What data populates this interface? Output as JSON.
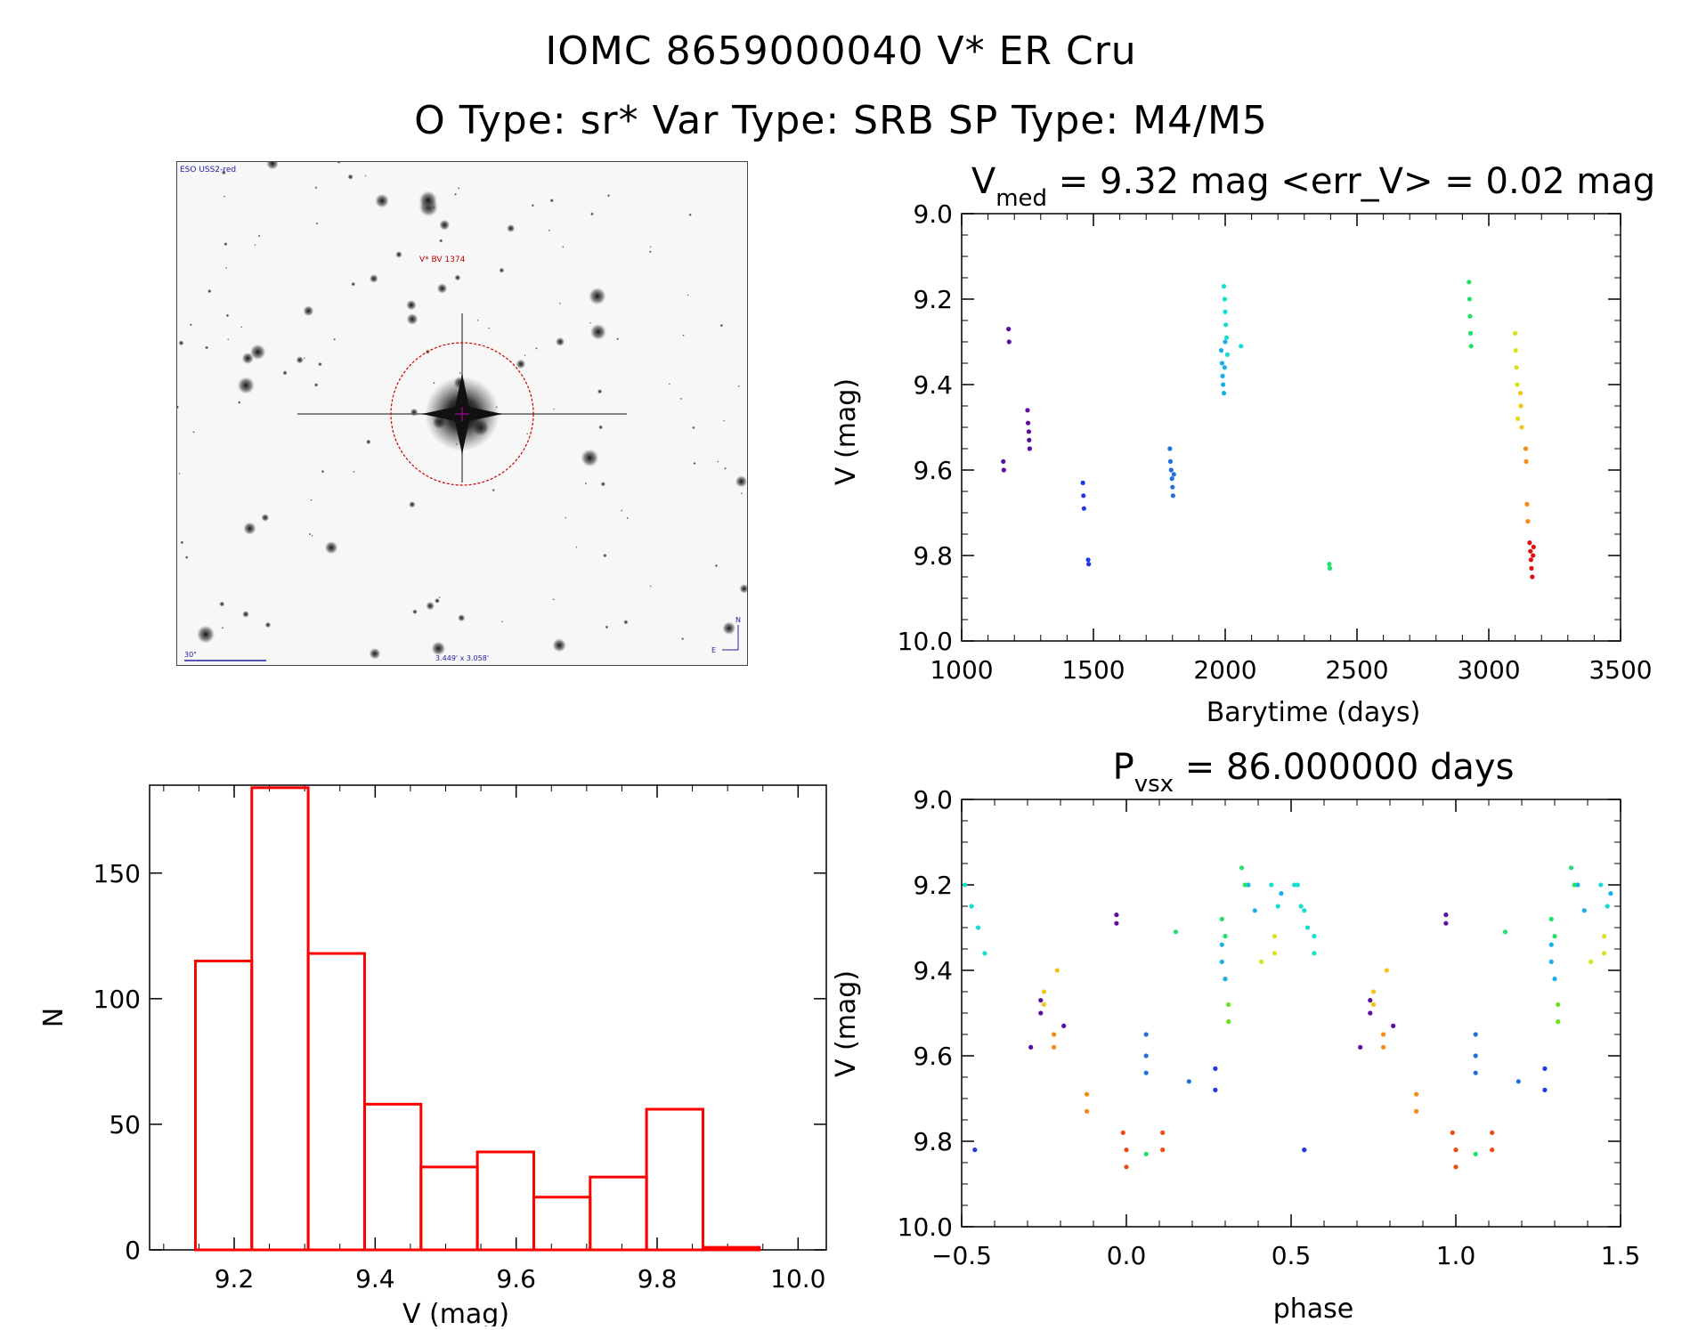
{
  "header": {
    "line1": "IOMC 8659000040    V* ER Cru",
    "line2": "O Type: sr*   Var Type: SRB   SP Type: M4/M5"
  },
  "finder": {
    "survey": "ESO USS2-red",
    "target_label": "V* BV 1374",
    "scale_label": "30\"",
    "fov_label": "3.449' x 3.058'",
    "north_label": "N",
    "east_label": "E"
  },
  "colors": {
    "histogram": "#ff0000",
    "phase_palette": [
      "#5a0fa0",
      "#2238e0",
      "#1e6fe0",
      "#18b0e8",
      "#14e0d0",
      "#1fe26a",
      "#6ae21f",
      "#d8e21c",
      "#f7c21a",
      "#f78a17",
      "#f04a14",
      "#e01010"
    ]
  },
  "chart_data": [
    {
      "id": "lightcurve",
      "type": "scatter",
      "title": "V_med = 9.32 mag <err_V> = 0.02 mag",
      "title_main": "V",
      "title_sub": "med",
      "title_rest": " = 9.32 mag <err_V> = 0.02 mag",
      "xlabel": "Barytime (days)",
      "ylabel": "V (mag)",
      "xlim": [
        1000,
        3500
      ],
      "ylim": [
        10.0,
        9.0
      ],
      "y_inverted": true,
      "xticks": [
        1000,
        1500,
        2000,
        2500,
        3000,
        3500
      ],
      "xtick_labels": [
        "1000",
        "1500",
        "2000",
        "2500",
        "3000",
        "3500"
      ],
      "yticks": [
        9.0,
        9.2,
        9.4,
        9.6,
        9.8,
        10.0
      ],
      "ytick_labels": [
        "9.0",
        "9.2",
        "9.4",
        "9.6",
        "9.8",
        "10.0"
      ],
      "series": [
        {
          "color_index": 0,
          "x": [
            1158,
            1160,
            1178,
            1180,
            1250,
            1252,
            1255,
            1256,
            1258
          ],
          "y": [
            9.58,
            9.6,
            9.27,
            9.3,
            9.46,
            9.49,
            9.51,
            9.53,
            9.55
          ]
        },
        {
          "color_index": 1,
          "x": [
            1460,
            1462,
            1464,
            1480,
            1482
          ],
          "y": [
            9.63,
            9.66,
            9.69,
            9.81,
            9.82
          ]
        },
        {
          "color_index": 2,
          "x": [
            1790,
            1792,
            1795,
            1798,
            1800,
            1802,
            1805
          ],
          "y": [
            9.55,
            9.58,
            9.6,
            9.62,
            9.64,
            9.66,
            9.61
          ]
        },
        {
          "color_index": 3,
          "x": [
            1985,
            1988,
            1990,
            1992,
            1995,
            1998,
            2000
          ],
          "y": [
            9.32,
            9.35,
            9.38,
            9.4,
            9.42,
            9.36,
            9.3
          ]
        },
        {
          "color_index": 4,
          "x": [
            1995,
            1998,
            2000,
            2002,
            2005,
            2008,
            2060
          ],
          "y": [
            9.17,
            9.2,
            9.23,
            9.26,
            9.29,
            9.33,
            9.31
          ]
        },
        {
          "color_index": 5,
          "x": [
            2395,
            2397,
            2925,
            2927,
            2929,
            2931,
            2933
          ],
          "y": [
            9.82,
            9.83,
            9.16,
            9.2,
            9.24,
            9.28,
            9.31
          ]
        },
        {
          "color_index": 7,
          "x": [
            3100,
            3102,
            3105,
            3108,
            3110
          ],
          "y": [
            9.28,
            9.32,
            9.36,
            9.4,
            9.48
          ]
        },
        {
          "color_index": 8,
          "x": [
            3120,
            3122,
            3125
          ],
          "y": [
            9.42,
            9.45,
            9.5
          ]
        },
        {
          "color_index": 9,
          "x": [
            3140,
            3142,
            3145,
            3148
          ],
          "y": [
            9.55,
            9.58,
            9.68,
            9.72
          ]
        },
        {
          "color_index": 11,
          "x": [
            3155,
            3158,
            3160,
            3162,
            3165,
            3168,
            3170
          ],
          "y": [
            9.77,
            9.79,
            9.81,
            9.83,
            9.85,
            9.8,
            9.78
          ]
        }
      ]
    },
    {
      "id": "histogram",
      "type": "bar",
      "xlabel": "V (mag)",
      "ylabel": "N",
      "xlim": [
        9.08,
        10.04
      ],
      "ylim": [
        0,
        185
      ],
      "xticks": [
        9.2,
        9.4,
        9.6,
        9.8,
        10.0
      ],
      "xtick_labels": [
        "9.2",
        "9.4",
        "9.6",
        "9.8",
        "10.0"
      ],
      "yticks": [
        0,
        50,
        100,
        150
      ],
      "ytick_labels": [
        "0",
        "50",
        "100",
        "150"
      ],
      "bin_edges": [
        9.145,
        9.225,
        9.305,
        9.385,
        9.465,
        9.545,
        9.625,
        9.705,
        9.785,
        9.865,
        9.945
      ],
      "values": [
        115,
        184,
        118,
        58,
        33,
        39,
        21,
        29,
        56,
        1
      ]
    },
    {
      "id": "phased",
      "type": "scatter",
      "title": "P_vsx = 86.000000 days",
      "title_main": "P",
      "title_sub": "vsx",
      "title_rest": " = 86.000000 days",
      "xlabel": "phase",
      "ylabel": "V (mag)",
      "xlim": [
        -0.5,
        1.5
      ],
      "ylim": [
        10.0,
        9.0
      ],
      "y_inverted": true,
      "xticks": [
        -0.5,
        0.0,
        0.5,
        1.0,
        1.5
      ],
      "xtick_labels": [
        "−0.5",
        "0.0",
        "0.5",
        "1.0",
        "1.5"
      ],
      "yticks": [
        9.0,
        9.2,
        9.4,
        9.6,
        9.8,
        10.0
      ],
      "ytick_labels": [
        "9.0",
        "9.2",
        "9.4",
        "9.6",
        "9.8",
        "10.0"
      ],
      "series": [
        {
          "color_index": 0,
          "x": [
            -0.03,
            -0.03,
            -0.29,
            -0.26,
            -0.26,
            -0.19
          ],
          "y": [
            9.27,
            9.29,
            9.58,
            9.47,
            9.5,
            9.53
          ]
        },
        {
          "color_index": 1,
          "x": [
            -0.46,
            0.27,
            0.27,
            0.54
          ],
          "y": [
            9.82,
            9.63,
            9.68,
            9.82
          ]
        },
        {
          "color_index": 2,
          "x": [
            0.06,
            0.06,
            0.06,
            0.19
          ],
          "y": [
            9.55,
            9.6,
            9.64,
            9.66
          ]
        },
        {
          "color_index": 3,
          "x": [
            0.29,
            0.29,
            0.3,
            0.37,
            0.39,
            0.47
          ],
          "y": [
            9.34,
            9.38,
            9.42,
            9.2,
            9.26,
            9.22
          ]
        },
        {
          "color_index": 4,
          "x": [
            -0.49,
            -0.47,
            -0.45,
            -0.43,
            0.44,
            0.46,
            0.52,
            0.54,
            0.57
          ],
          "y": [
            9.2,
            9.25,
            9.3,
            9.36,
            9.2,
            9.25,
            9.2,
            9.26,
            9.32
          ]
        },
        {
          "color_index": 5,
          "x": [
            0.15,
            0.29,
            0.3,
            0.35,
            0.36,
            0.06
          ],
          "y": [
            9.31,
            9.28,
            9.32,
            9.16,
            9.2,
            9.83
          ]
        },
        {
          "color_index": 6,
          "x": [
            0.31,
            0.31
          ],
          "y": [
            9.48,
            9.52
          ]
        },
        {
          "color_index": 7,
          "x": [
            0.41,
            0.45,
            0.45
          ],
          "y": [
            9.38,
            9.32,
            9.36
          ]
        },
        {
          "color_index": 8,
          "x": [
            -0.25,
            -0.25,
            -0.21
          ],
          "y": [
            9.45,
            9.48,
            9.4
          ]
        },
        {
          "color_index": 9,
          "x": [
            -0.22,
            -0.22,
            -0.12,
            -0.12
          ],
          "y": [
            9.55,
            9.58,
            9.69,
            9.73
          ]
        },
        {
          "color_index": 10,
          "x": [
            -0.01,
            0.0,
            0.0,
            0.11,
            0.11
          ],
          "y": [
            9.78,
            9.82,
            9.86,
            9.78,
            9.82
          ]
        }
      ]
    }
  ]
}
